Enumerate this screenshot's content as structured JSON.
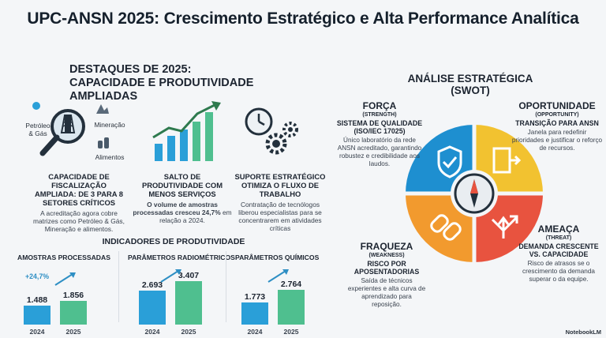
{
  "title": "UPC-ANSN 2025: Crescimento Estratégico e Alta Performance Analítica",
  "highlights": {
    "heading_line1": "DESTAQUES DE 2025:",
    "heading_line2": "CAPACIDADE E PRODUTIVIDADE AMPLIADAS",
    "icon_labels": {
      "oil_gas": "Petróleo\n& Gás",
      "mining": "Mineração",
      "food": "Alimentos"
    },
    "cards": [
      {
        "heading": "CAPACIDADE DE FISCALIZAÇÃO AMPLIADA: DE 3 PARA 8 SETORES CRÍTICOS",
        "desc": "A acreditação agora cobre matrizes como Petróleo & Gás, Mineração e alimentos."
      },
      {
        "heading": "SALTO DE PRODUTIVIDADE COM MENOS SERVIÇOS",
        "desc_bold": "O volume de amostras processadas cresceu 24,7%",
        "desc": "em relação a 2024."
      },
      {
        "heading": "SUPORTE ESTRATÉGICO OTIMIZA O FLUXO DE TRABALHO",
        "desc": "Contratação de tecnólogos liberou especialistas para se concentrarem em atividades críticas"
      }
    ]
  },
  "chart_data": [
    {
      "type": "bar",
      "title": "AMOSTRAS PROCESSADAS",
      "categories": [
        "2024",
        "2025"
      ],
      "values": [
        1488,
        1856
      ],
      "value_labels": [
        "1.488",
        "1.856"
      ],
      "annotation": "+24,7%"
    },
    {
      "type": "bar",
      "title": "PARÂMETROS RADIOMÉTRICOS",
      "categories": [
        "2024",
        "2025"
      ],
      "values": [
        2693,
        3407
      ],
      "value_labels": [
        "2.693",
        "3.407"
      ]
    },
    {
      "type": "bar",
      "title": "PARÂMETROS QUÍMICOS",
      "categories": [
        "2024",
        "2025"
      ],
      "values": [
        1773,
        2764
      ],
      "value_labels": [
        "1.773",
        "2.764"
      ]
    }
  ],
  "kpi_heading": "INDICADORES DE PRODUTIVIDADE",
  "swot": {
    "heading": "ANÁLISE ESTRATÉGICA (SWOT)",
    "strength": {
      "title": "FORÇA",
      "sub": "(STRENGTH)",
      "head": "SISTEMA DE QUALIDADE (ISO/IEC 17025)",
      "desc": "Único laboratório da rede ANSN acreditado, garantindo robustez e credibilidade aos laudos."
    },
    "opportunity": {
      "title": "OPORTUNIDADE",
      "sub": "(OPPORTUNITY)",
      "head": "TRANSIÇÃO PARA ANSN",
      "desc": "Janela para redefinir prioridades e justificar o reforço de recursos."
    },
    "weakness": {
      "title": "FRAQUEZA",
      "sub": "(WEAKNESS)",
      "head": "RISCO POR APOSENTADORIAS",
      "desc": "Saída de técnicos experientes e alta curva de aprendizado para reposição."
    },
    "threat": {
      "title": "AMEAÇA",
      "sub": "(THREAT)",
      "head": "DEMANDA CRESCENTE VS. CAPACIDADE",
      "desc": "Risco de atrasos se o crescimento da demanda superar o da equipe."
    },
    "colors": {
      "strength": "#1e8fd0",
      "opportunity": "#f2c230",
      "weakness": "#f29a2e",
      "threat": "#e8533f"
    }
  },
  "brand": "NotebookLM",
  "colors": {
    "bar_2024": "#2a9fd8",
    "bar_2025": "#4fbf8f",
    "accent": "#2e8fc4"
  }
}
